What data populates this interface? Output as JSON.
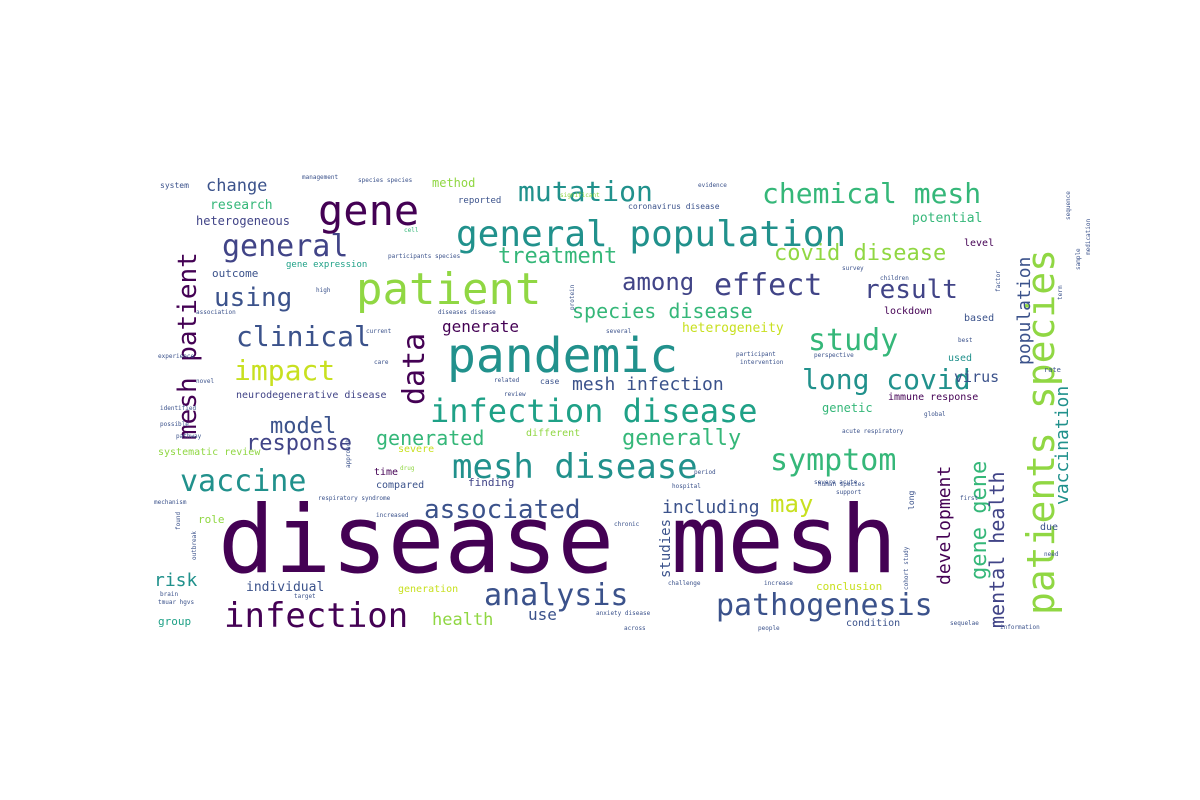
{
  "palette": {
    "dark_purple": "#440154",
    "indigo": "#3b528b",
    "blue": "#31688e",
    "teal": "#21918c",
    "cyan_teal": "#1fa187",
    "green": "#35b779",
    "light_green": "#90d743",
    "lime": "#c8e020",
    "slate": "#414487"
  },
  "words": [
    "disease mesh",
    "pandemic",
    "patient",
    "gene",
    "general population",
    "patients species",
    "mesh disease",
    "infection disease",
    "infection",
    "pathogenesis",
    "analysis",
    "chemical mesh",
    "mutation",
    "general",
    "effect",
    "symptom",
    "vaccine",
    "long covid",
    "study",
    "clinical",
    "covid disease",
    "data",
    "mesh patient",
    "associated",
    "impact",
    "result",
    "using",
    "among",
    "treatment",
    "species disease",
    "model",
    "response",
    "generated",
    "generally",
    "may",
    "including",
    "risk",
    "mesh infection",
    "gene gene",
    "mental health",
    "development",
    "population",
    "vaccination",
    "change",
    "research",
    "method",
    "heterogeneous",
    "potential",
    "generate",
    "heterogeneity",
    "virus",
    "health",
    "use",
    "studies",
    "individual",
    "conclusion",
    "generation",
    "condition",
    "group",
    "outcome",
    "gene expression",
    "neurodegenerative disease",
    "systematic review",
    "genetic",
    "immune response",
    "lockdown",
    "different",
    "severe",
    "finding",
    "compared",
    "time",
    "role",
    "level",
    "based",
    "used",
    "system",
    "management",
    "species species",
    "evidence",
    "coronavirus disease",
    "reported",
    "significant",
    "cell",
    "participants species",
    "survey",
    "children",
    "factor",
    "high",
    "association",
    "current",
    "several",
    "participant",
    "intervention",
    "perspective",
    "related",
    "review",
    "case",
    "diseases disease",
    "care",
    "experience",
    "rate",
    "novel",
    "identified",
    "possible",
    "pathway",
    "acute respiratory",
    "global",
    "approach",
    "drug",
    "human species",
    "period",
    "hospital",
    "severe acute",
    "support",
    "respiratory syndrome",
    "increased",
    "mechanism",
    "chronic",
    "challenge",
    "increase",
    "cohort study",
    "first",
    "due",
    "brain",
    "target",
    "anxiety disease",
    "sequelae",
    "information",
    "across",
    "people",
    "need",
    "outbreak",
    "long",
    "found",
    "tmuar hgvs",
    "protein",
    "best",
    "sequence",
    "sample",
    "term",
    "medication",
    "tissue",
    "present"
  ]
}
